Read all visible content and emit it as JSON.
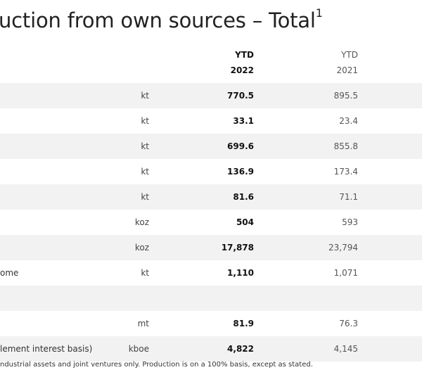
{
  "title": {
    "text": "uction from own sources – Total",
    "sup": "1"
  },
  "header": {
    "current_label": "YTD",
    "current_year": "2022",
    "previous_label": "YTD",
    "previous_year": "2021"
  },
  "rows": [
    {
      "label": "",
      "unit": "kt",
      "current": "770.5",
      "previous": "895.5"
    },
    {
      "label": "",
      "unit": "kt",
      "current": "33.1",
      "previous": "23.4"
    },
    {
      "label": "",
      "unit": "kt",
      "current": "699.6",
      "previous": "855.8"
    },
    {
      "label": "",
      "unit": "kt",
      "current": "136.9",
      "previous": "173.4"
    },
    {
      "label": "",
      "unit": "kt",
      "current": "81.6",
      "previous": "71.1"
    },
    {
      "label": "",
      "unit": "koz",
      "current": "504",
      "previous": "593"
    },
    {
      "label": "",
      "unit": "koz",
      "current": "17,878",
      "previous": "23,794"
    },
    {
      "label": "ome",
      "unit": "kt",
      "current": "1,110",
      "previous": "1,071"
    },
    {
      "label": "",
      "unit": "",
      "current": "",
      "previous": ""
    },
    {
      "label": "",
      "unit": "mt",
      "current": "81.9",
      "previous": "76.3"
    },
    {
      "label": "lement interest basis)",
      "unit": "kboe",
      "current": "4,822",
      "previous": "4,145"
    }
  ],
  "footnote": "ndustrial assets and joint ventures only. Production is on a 100% basis, except as stated."
}
